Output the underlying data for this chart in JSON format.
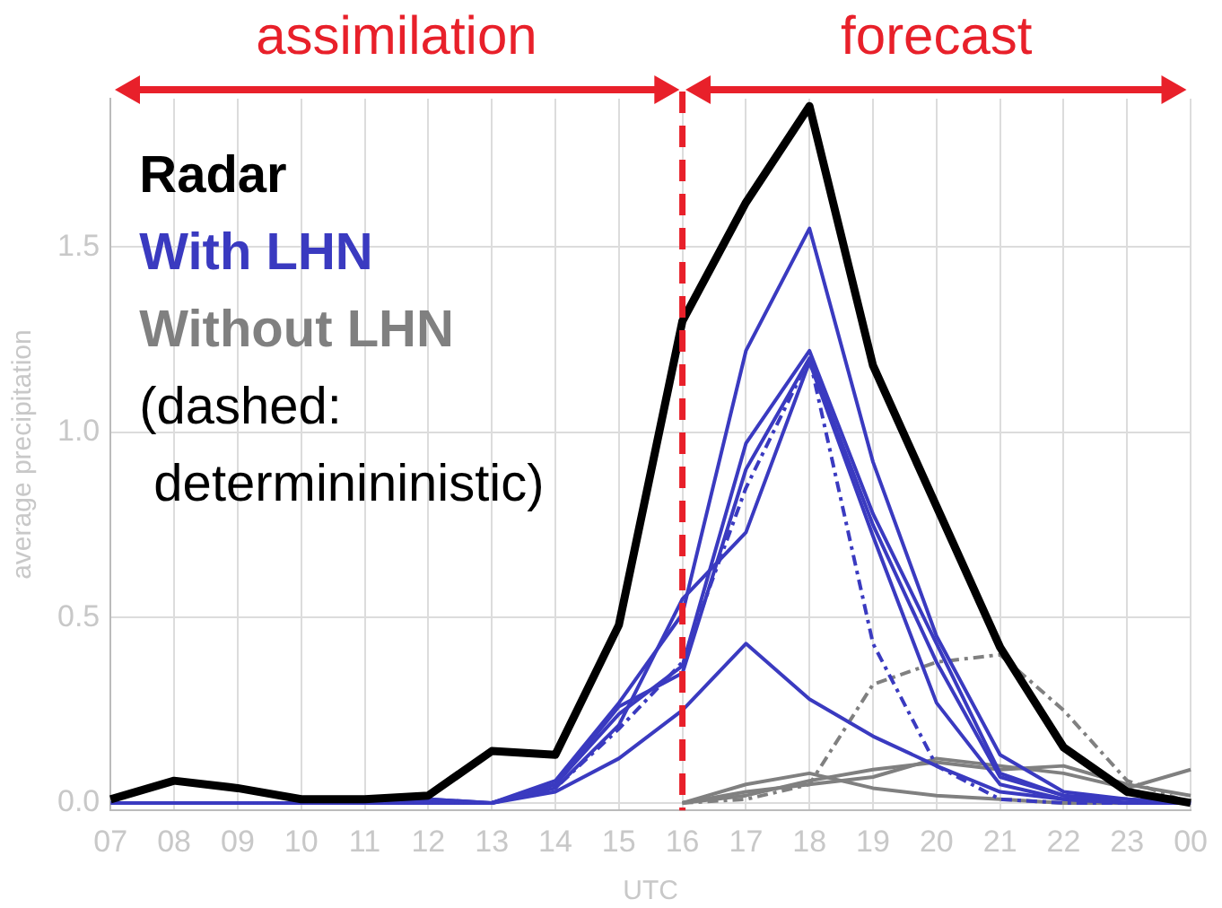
{
  "chart_data": {
    "type": "line",
    "xlabel": "UTC",
    "ylabel": "average precipitation",
    "categories": [
      "07",
      "08",
      "09",
      "10",
      "11",
      "12",
      "13",
      "14",
      "15",
      "16",
      "17",
      "18",
      "19",
      "20",
      "21",
      "22",
      "23",
      "00"
    ],
    "ylim": [
      -0.02,
      1.9
    ],
    "yticks": [
      {
        "value": 0,
        "label": "0.0"
      },
      {
        "value": 0.5,
        "label": "0.5"
      },
      {
        "value": 1,
        "label": "1.0"
      },
      {
        "value": 1.5,
        "label": "1.5"
      }
    ],
    "grid": true,
    "legend": "top left",
    "marker": "none",
    "ref_lines": [
      {
        "axis": "x",
        "value": "16",
        "color": "#e8202a",
        "line_style": "dashed"
      }
    ],
    "annotations": [
      "assimilation",
      "forecast",
      "(dashed:\n determinininistic)"
    ],
    "series": [
      {
        "name": "Without LHN",
        "color": "#808080",
        "values": [
          null,
          null,
          null,
          null,
          null,
          null,
          null,
          null,
          null,
          0,
          0.05,
          0.08,
          0.04,
          0.02,
          0.01,
          0,
          0,
          0
        ]
      },
      {
        "color": "#808080",
        "values": [
          null,
          null,
          null,
          null,
          null,
          null,
          null,
          null,
          null,
          0,
          0.03,
          0.05,
          0.07,
          0.12,
          0.1,
          0.08,
          0.04,
          0.09
        ]
      },
      {
        "color": "#808080",
        "values": [
          null,
          null,
          null,
          null,
          null,
          null,
          null,
          null,
          null,
          0,
          0.02,
          0.06,
          0.09,
          0.11,
          0.09,
          0.1,
          0.05,
          0.02
        ]
      },
      {
        "color": "#808080",
        "line_style": "dashed",
        "values": [
          null,
          null,
          null,
          null,
          null,
          null,
          null,
          null,
          null,
          0,
          0.01,
          0.05,
          0.32,
          0.38,
          0.4,
          0.25,
          0.06,
          0
        ]
      },
      {
        "name": "With LHN",
        "color": "#3a3ac0",
        "values": [
          0,
          0,
          0,
          0,
          0,
          0.01,
          0,
          0.06,
          0.27,
          0.51,
          1.22,
          1.55,
          0.92,
          0.45,
          0.13,
          0.03,
          0.01,
          0
        ]
      },
      {
        "color": "#3a3ac0",
        "values": [
          null,
          null,
          0,
          0,
          0,
          0.01,
          0,
          0.05,
          0.24,
          0.37,
          0.97,
          1.22,
          0.78,
          0.43,
          0.08,
          0.02,
          0.01,
          0
        ]
      },
      {
        "color": "#3a3ac0",
        "values": [
          null,
          null,
          0,
          0,
          0.01,
          0,
          0,
          0.04,
          0.21,
          0.55,
          0.73,
          1.19,
          0.72,
          0.27,
          0.05,
          0.01,
          0,
          0
        ]
      },
      {
        "color": "#3a3ac0",
        "values": [
          null,
          null,
          0,
          0,
          0,
          0,
          0,
          0.03,
          0.12,
          0.25,
          0.43,
          0.28,
          0.18,
          0.1,
          0.03,
          0.01,
          0,
          0
        ]
      },
      {
        "color": "#3a3ac0",
        "values": [
          null,
          null,
          0,
          0,
          0,
          0,
          0,
          0.05,
          0.26,
          0.35,
          0.9,
          1.2,
          0.75,
          0.38,
          0.07,
          0.02,
          0,
          0
        ]
      },
      {
        "color": "#3a3ac0",
        "line_style": "dashed",
        "values": [
          null,
          null,
          0,
          0,
          0,
          0,
          0,
          0.04,
          0.2,
          0.38,
          0.85,
          1.2,
          0.43,
          0.1,
          0.01,
          0,
          0,
          0
        ]
      },
      {
        "name": "Radar",
        "color": "#000000",
        "values": [
          0.01,
          0.06,
          0.04,
          0.01,
          0.01,
          0.02,
          0.14,
          0.13,
          0.48,
          1.3,
          1.62,
          1.88,
          1.18,
          0.8,
          0.42,
          0.15,
          0.03,
          0
        ]
      }
    ]
  }
}
